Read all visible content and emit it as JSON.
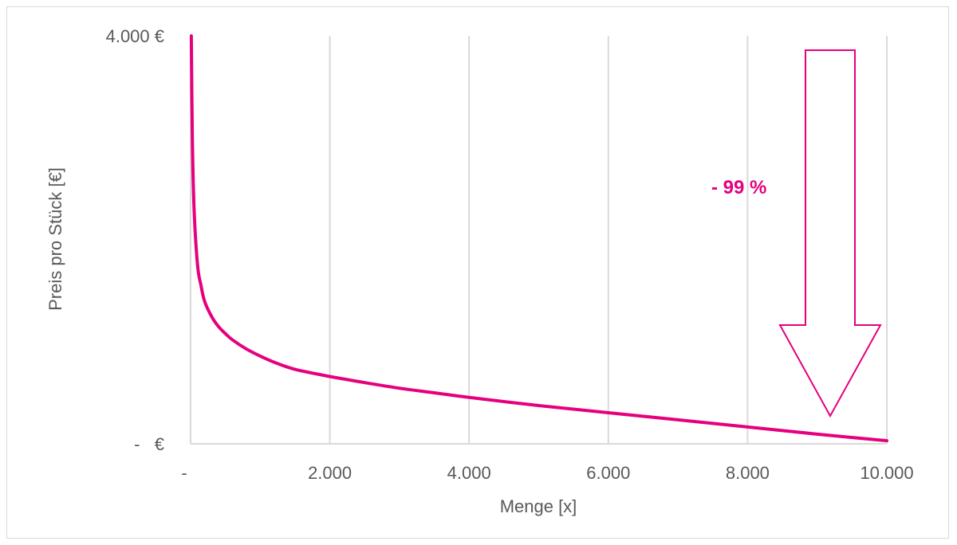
{
  "chart_data": {
    "type": "line",
    "title": "",
    "xlabel": "Menge [x]",
    "ylabel": "Preis pro Stück [€]",
    "xlim": [
      0,
      10000
    ],
    "ylim": [
      0,
      4000
    ],
    "x_ticks": [
      {
        "value": 0,
        "label": "-"
      },
      {
        "value": 2000,
        "label": "2.000"
      },
      {
        "value": 4000,
        "label": "4.000"
      },
      {
        "value": 6000,
        "label": "6.000"
      },
      {
        "value": 8000,
        "label": "8.000"
      },
      {
        "value": 10000,
        "label": "10.000"
      }
    ],
    "y_ticks": [
      {
        "value": 0,
        "label": "-   €"
      },
      {
        "value": 4000,
        "label": "4.000 €"
      }
    ],
    "grid": {
      "vertical": true,
      "horizontal": false
    },
    "legend": "none",
    "series": [
      {
        "color": "#e5007e",
        "x": [
          10,
          25,
          50,
          100,
          150,
          200,
          300,
          400,
          500,
          600,
          800,
          1000,
          1200,
          1500,
          2000,
          2500,
          3000,
          3500,
          4000,
          5000,
          6000,
          7000,
          8000,
          9000,
          10000
        ],
        "y": [
          4000,
          3000,
          2300,
          1750,
          1550,
          1400,
          1250,
          1150,
          1080,
          1020,
          930,
          860,
          800,
          730,
          660,
          600,
          545,
          500,
          455,
          375,
          305,
          235,
          165,
          95,
          30
        ]
      }
    ],
    "annotations": [
      {
        "text": "- 99 %",
        "color": "#e5007e",
        "shape": "down-arrow-outline"
      }
    ]
  }
}
